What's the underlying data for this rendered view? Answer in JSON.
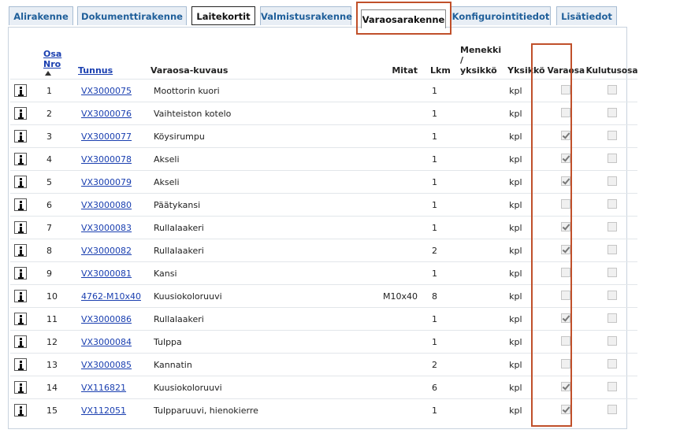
{
  "tabs": {
    "items": [
      "Alirakenne",
      "Dokumenttirakenne",
      "Laitekortit",
      "Valmistusrakenne",
      "Varaosarakenne",
      "Konfigurointitiedot",
      "Lisätiedot"
    ],
    "selected": 4,
    "outlined": 2
  },
  "table": {
    "headers": {
      "nro": "Osa Nro",
      "tunnus": "Tunnus",
      "kuvaus": "Varaosa-kuvaus",
      "mitat": "Mitat",
      "lkm": "Lkm",
      "menekki": "Menekki / yksikkö",
      "yksikko": "Yksikkö",
      "varaosa": "Varaosa",
      "kulutusosa": "Kulutusosa"
    },
    "rows": [
      {
        "nro": 1,
        "tunnus": "VX3000075",
        "kuvaus": "Moottorin kuori",
        "mitat": null,
        "lkm": 1,
        "yksikko": "kpl",
        "varaosa": false,
        "kulutusosa": false
      },
      {
        "nro": 2,
        "tunnus": "VX3000076",
        "kuvaus": "Vaihteiston kotelo",
        "mitat": null,
        "lkm": 1,
        "yksikko": "kpl",
        "varaosa": false,
        "kulutusosa": false
      },
      {
        "nro": 3,
        "tunnus": "VX3000077",
        "kuvaus": "Köysirumpu",
        "mitat": null,
        "lkm": 1,
        "yksikko": "kpl",
        "varaosa": true,
        "kulutusosa": false
      },
      {
        "nro": 4,
        "tunnus": "VX3000078",
        "kuvaus": "Akseli",
        "mitat": null,
        "lkm": 1,
        "yksikko": "kpl",
        "varaosa": true,
        "kulutusosa": false
      },
      {
        "nro": 5,
        "tunnus": "VX3000079",
        "kuvaus": "Akseli",
        "mitat": null,
        "lkm": 1,
        "yksikko": "kpl",
        "varaosa": true,
        "kulutusosa": false
      },
      {
        "nro": 6,
        "tunnus": "VX3000080",
        "kuvaus": "Päätykansi",
        "mitat": null,
        "lkm": 1,
        "yksikko": "kpl",
        "varaosa": false,
        "kulutusosa": false
      },
      {
        "nro": 7,
        "tunnus": "VX3000083",
        "kuvaus": "Rullalaakeri",
        "mitat": null,
        "lkm": 1,
        "yksikko": "kpl",
        "varaosa": true,
        "kulutusosa": false
      },
      {
        "nro": 8,
        "tunnus": "VX3000082",
        "kuvaus": "Rullalaakeri",
        "mitat": null,
        "lkm": 2,
        "yksikko": "kpl",
        "varaosa": true,
        "kulutusosa": false
      },
      {
        "nro": 9,
        "tunnus": "VX3000081",
        "kuvaus": "Kansi",
        "mitat": null,
        "lkm": 1,
        "yksikko": "kpl",
        "varaosa": false,
        "kulutusosa": false
      },
      {
        "nro": 10,
        "tunnus": "4762-M10x40",
        "kuvaus": "Kuusiokoloruuvi",
        "mitat": "M10x40",
        "lkm": 8,
        "yksikko": "kpl",
        "varaosa": false,
        "kulutusosa": false
      },
      {
        "nro": 11,
        "tunnus": "VX3000086",
        "kuvaus": "Rullalaakeri",
        "mitat": null,
        "lkm": 1,
        "yksikko": "kpl",
        "varaosa": true,
        "kulutusosa": false
      },
      {
        "nro": 12,
        "tunnus": "VX3000084",
        "kuvaus": "Tulppa",
        "mitat": null,
        "lkm": 1,
        "yksikko": "kpl",
        "varaosa": false,
        "kulutusosa": false
      },
      {
        "nro": 13,
        "tunnus": "VX3000085",
        "kuvaus": "Kannatin",
        "mitat": null,
        "lkm": 2,
        "yksikko": "kpl",
        "varaosa": false,
        "kulutusosa": false
      },
      {
        "nro": 14,
        "tunnus": "VX116821",
        "kuvaus": "Kuusiokoloruuvi",
        "mitat": null,
        "lkm": 6,
        "yksikko": "kpl",
        "varaosa": true,
        "kulutusosa": false
      },
      {
        "nro": 15,
        "tunnus": "VX112051",
        "kuvaus": "Tulpparuuvi, hienokierre",
        "mitat": null,
        "lkm": 1,
        "yksikko": "kpl",
        "varaosa": true,
        "kulutusosa": false
      }
    ]
  }
}
